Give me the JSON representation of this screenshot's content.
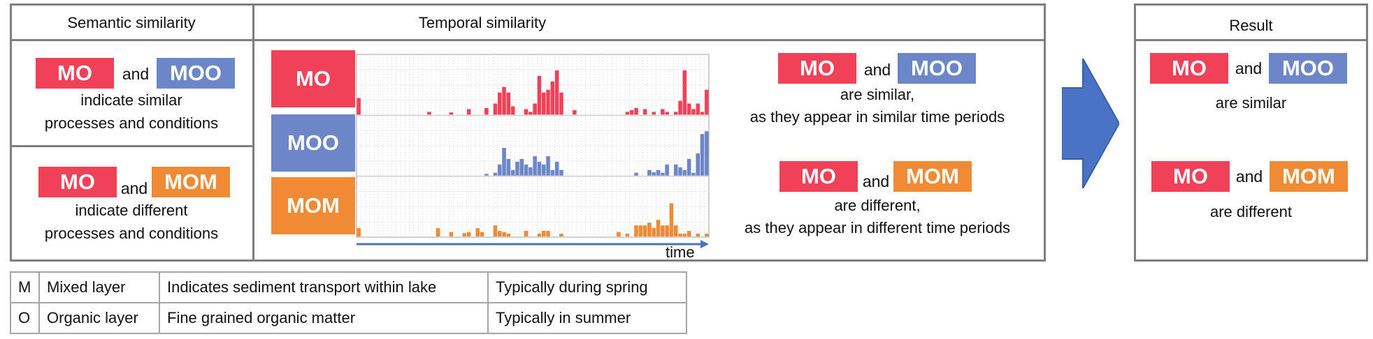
{
  "colors": {
    "MO": "#f04159",
    "MOO": "#6c86c8",
    "MOM": "#f08a35",
    "arrow": "#4a73c6",
    "border": "#7f7f7f"
  },
  "semantic": {
    "title": "Semantic similarity",
    "box1": {
      "left": "MO",
      "and": "and",
      "right": "MOO",
      "line1": "indicate similar",
      "line2": "processes and conditions"
    },
    "box2": {
      "left": "MO",
      "and": "and",
      "right": "MOM",
      "line1": "indicate different",
      "line2": "processes and conditions"
    }
  },
  "temporal": {
    "title": "Temporal similarity",
    "row_labels": [
      "MO",
      "MOO",
      "MOM"
    ],
    "time_label": "time",
    "statement1": {
      "left": "MO",
      "and": "and",
      "right": "MOO",
      "line1": "are similar,",
      "line2": "as they appear in similar time periods"
    },
    "statement2": {
      "left": "MO",
      "and": "and",
      "right": "MOM",
      "line1": "are different,",
      "line2": "as they appear in different time periods"
    }
  },
  "result": {
    "title": "Result",
    "r1": {
      "left": "MO",
      "and": "and",
      "right": "MOO",
      "text": "are similar"
    },
    "r2": {
      "left": "MO",
      "and": "and",
      "right": "MOM",
      "text": "are different"
    }
  },
  "legend": [
    {
      "code": "M",
      "name": "Mixed layer",
      "desc": "Indicates sediment transport within lake",
      "season": "Typically during spring"
    },
    {
      "code": "O",
      "name": "Organic layer",
      "desc": "Fine grained organic matter",
      "season": "Typically in summer"
    }
  ],
  "chart_data": {
    "type": "bar",
    "series": [
      {
        "name": "MO",
        "values": [
          0.3,
          0,
          0,
          0,
          0,
          0,
          0,
          0,
          0,
          0,
          0,
          0,
          0,
          0,
          0,
          0,
          0.05,
          0,
          0,
          0,
          0,
          0.04,
          0,
          0,
          0,
          0.1,
          0,
          0,
          0,
          0.12,
          0,
          0.2,
          0.4,
          0.5,
          0.4,
          0.15,
          0,
          0,
          0.1,
          0.05,
          0.2,
          0.7,
          0.4,
          0.45,
          0.6,
          0.8,
          0.4,
          0,
          0,
          0.08,
          0,
          0,
          0,
          0,
          0,
          0,
          0,
          0,
          0,
          0,
          0,
          0.05,
          0.08,
          0.12,
          0,
          0.1,
          0,
          0.05,
          0,
          0.1,
          0.05,
          0,
          0.05,
          0.25,
          0.8,
          0.2,
          0.1,
          0.2,
          0.05,
          0.45
        ]
      },
      {
        "name": "MOO",
        "values": [
          0,
          0,
          0,
          0,
          0,
          0,
          0,
          0,
          0,
          0,
          0,
          0,
          0,
          0,
          0,
          0,
          0,
          0,
          0,
          0,
          0,
          0,
          0,
          0,
          0,
          0,
          0,
          0,
          0,
          0.03,
          0,
          0.05,
          0.2,
          0.5,
          0.3,
          0.1,
          0.25,
          0.3,
          0.2,
          0.15,
          0.35,
          0.25,
          0.2,
          0.35,
          0.1,
          0.25,
          0.1,
          0,
          0,
          0,
          0,
          0,
          0,
          0,
          0,
          0,
          0,
          0,
          0,
          0,
          0,
          0,
          0,
          0.05,
          0,
          0,
          0.1,
          0.06,
          0.1,
          0.05,
          0.2,
          0,
          0.2,
          0.15,
          0.1,
          0.3,
          0.05,
          0.4,
          0.75,
          0.8
        ]
      },
      {
        "name": "MOM",
        "values": [
          0.15,
          0,
          0,
          0,
          0,
          0,
          0,
          0,
          0,
          0,
          0,
          0,
          0,
          0,
          0,
          0,
          0,
          0,
          0.15,
          0,
          0,
          0.08,
          0,
          0,
          0.06,
          0.08,
          0,
          0.15,
          0.08,
          0,
          0,
          0.2,
          0.1,
          0.08,
          0.05,
          0,
          0,
          0,
          0.1,
          0,
          0,
          0.05,
          0.1,
          0.1,
          0,
          0,
          0.05,
          0,
          0,
          0,
          0,
          0,
          0,
          0,
          0,
          0,
          0,
          0,
          0,
          0.08,
          0,
          0.05,
          0,
          0.2,
          0.2,
          0.2,
          0.25,
          0.15,
          0.3,
          0.2,
          0.2,
          0.6,
          0.2,
          0.05,
          0.05,
          0.1,
          0,
          0.05,
          0,
          0.05
        ]
      }
    ]
  }
}
